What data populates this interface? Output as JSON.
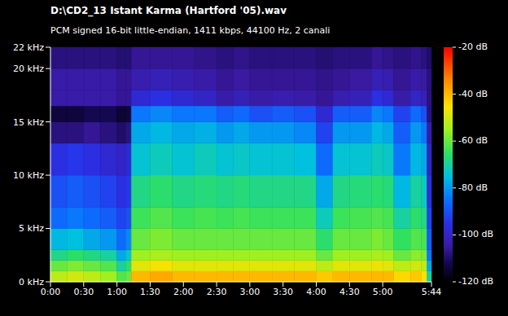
{
  "chart_data": {
    "type": "heatmap",
    "title": "D:\\CD2_13 Istant Karma (Hartford '05).wav",
    "subtitle": "PCM signed 16-bit little-endian, 1411 kbps, 44100 Hz, 2 canali",
    "grid": false,
    "x_bins": [
      0,
      15,
      30,
      45,
      60,
      68,
      73,
      90,
      110,
      130,
      150,
      165,
      180,
      200,
      220,
      240,
      255,
      270,
      290,
      300,
      310,
      325,
      335,
      340,
      344
    ],
    "y_bins": [
      0,
      1,
      2,
      3,
      5,
      7,
      10,
      13,
      15,
      16.5,
      18,
      20,
      22
    ],
    "cells": [
      [
        -52,
        -50,
        -52,
        -55,
        -62,
        -60,
        -40,
        -38,
        -40,
        -40,
        -40,
        -40,
        -40,
        -40,
        -40,
        -42,
        -40,
        -40,
        -40,
        -40,
        -44,
        -42,
        -45,
        -70
      ],
      [
        -60,
        -58,
        -60,
        -62,
        -70,
        -66,
        -48,
        -46,
        -48,
        -48,
        -48,
        -48,
        -48,
        -48,
        -48,
        -52,
        -48,
        -48,
        -47,
        -48,
        -52,
        -50,
        -52,
        -78
      ],
      [
        -68,
        -66,
        -68,
        -70,
        -78,
        -74,
        -55,
        -54,
        -55,
        -55,
        -55,
        -55,
        -55,
        -55,
        -55,
        -60,
        -55,
        -55,
        -54,
        -55,
        -60,
        -57,
        -58,
        -84
      ],
      [
        -76,
        -75,
        -78,
        -80,
        -86,
        -82,
        -60,
        -58,
        -60,
        -60,
        -60,
        -60,
        -60,
        -60,
        -60,
        -66,
        -60,
        -60,
        -58,
        -60,
        -65,
        -62,
        -63,
        -88
      ],
      [
        -86,
        -84,
        -86,
        -88,
        -92,
        -90,
        -64,
        -62,
        -64,
        -63,
        -64,
        -63,
        -64,
        -64,
        -64,
        -72,
        -64,
        -63,
        -62,
        -63,
        -70,
        -66,
        -68,
        -92
      ],
      [
        -90,
        -88,
        -90,
        -92,
        -96,
        -94,
        -68,
        -66,
        -68,
        -67,
        -68,
        -67,
        -68,
        -68,
        -68,
        -78,
        -68,
        -67,
        -66,
        -67,
        -76,
        -70,
        -72,
        -96
      ],
      [
        -96,
        -94,
        -96,
        -98,
        -100,
        -98,
        -74,
        -72,
        -74,
        -72,
        -74,
        -73,
        -74,
        -74,
        -75,
        -86,
        -74,
        -74,
        -72,
        -73,
        -84,
        -76,
        -78,
        -100
      ],
      [
        -108,
        -108,
        -106,
        -108,
        -110,
        -108,
        -78,
        -76,
        -78,
        -77,
        -80,
        -78,
        -80,
        -80,
        -82,
        -92,
        -80,
        -80,
        -76,
        -78,
        -88,
        -80,
        -84,
        -104
      ],
      [
        -114,
        -114,
        -112,
        -112,
        -115,
        -114,
        -84,
        -82,
        -84,
        -84,
        -88,
        -86,
        -90,
        -88,
        -90,
        -98,
        -88,
        -88,
        -82,
        -84,
        -92,
        -86,
        -90,
        -108
      ],
      [
        -104,
        -104,
        -104,
        -104,
        -106,
        -106,
        -98,
        -96,
        -98,
        -100,
        -104,
        -102,
        -104,
        -103,
        -104,
        -106,
        -103,
        -102,
        -96,
        -98,
        -104,
        -100,
        -102,
        -108
      ],
      [
        -104,
        -104,
        -104,
        -104,
        -106,
        -106,
        -103,
        -102,
        -103,
        -104,
        -106,
        -105,
        -106,
        -106,
        -106,
        -107,
        -106,
        -105,
        -102,
        -103,
        -106,
        -104,
        -105,
        -108
      ],
      [
        -108,
        -108,
        -108,
        -108,
        -109,
        -109,
        -106,
        -106,
        -106,
        -107,
        -108,
        -107,
        -108,
        -108,
        -108,
        -109,
        -108,
        -108,
        -106,
        -107,
        -108,
        -107,
        -108,
        -110
      ]
    ],
    "xlim": [
      0,
      344
    ],
    "xticks": [
      {
        "value": 0,
        "label": "0:00"
      },
      {
        "value": 30,
        "label": "0:30"
      },
      {
        "value": 60,
        "label": "1:00"
      },
      {
        "value": 90,
        "label": "1:30"
      },
      {
        "value": 120,
        "label": "2:00"
      },
      {
        "value": 150,
        "label": "2:30"
      },
      {
        "value": 180,
        "label": "3:00"
      },
      {
        "value": 210,
        "label": "3:30"
      },
      {
        "value": 240,
        "label": "4:00"
      },
      {
        "value": 270,
        "label": "4:30"
      },
      {
        "value": 300,
        "label": "5:00"
      },
      {
        "value": 344,
        "label": "5:44"
      }
    ],
    "ylim": [
      0,
      22
    ],
    "yticks": [
      {
        "value": 0,
        "label": "0 kHz"
      },
      {
        "value": 5,
        "label": "5 kHz"
      },
      {
        "value": 10,
        "label": "10 kHz"
      },
      {
        "value": 15,
        "label": "15 kHz"
      },
      {
        "value": 20,
        "label": "20 kHz"
      },
      {
        "value": 22,
        "label": "22 kHz"
      }
    ],
    "colorbar_range": [
      -120,
      -20
    ],
    "colorbar_ticks": [
      {
        "value": -20,
        "label": "-20 dB"
      },
      {
        "value": -40,
        "label": "-40 dB"
      },
      {
        "value": -60,
        "label": "-60 dB"
      },
      {
        "value": -80,
        "label": "-80 dB"
      },
      {
        "value": -100,
        "label": "-100 dB"
      },
      {
        "value": -120,
        "label": "-120 dB"
      }
    ]
  }
}
